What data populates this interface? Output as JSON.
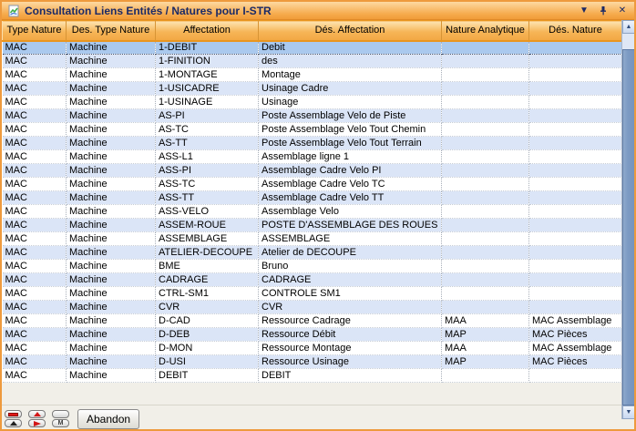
{
  "window": {
    "title": "Consultation Liens Entités / Natures pour I-STR",
    "titlebar_icons": [
      "document-chart-icon",
      "chevron-down-icon",
      "pin-icon",
      "close-icon"
    ]
  },
  "colors": {
    "titlebar_orange": "#f19c38",
    "header_orange": "#f2a743",
    "selected_row_blue": "#aac9ee",
    "alt_row_blue": "#dbe5f7",
    "scrollbar_thumb": "#7d9bc4",
    "title_text_navy": "#1b2a66"
  },
  "table": {
    "columns": [
      "Type Nature",
      "Des. Type Nature",
      "Affectation",
      "Dés. Affectation",
      "Nature Analytique",
      "Dés. Nature"
    ],
    "selected_row_index": 0,
    "rows": [
      [
        "MAC",
        "Machine",
        "1-DEBIT",
        "Debit",
        "",
        ""
      ],
      [
        "MAC",
        "Machine",
        "1-FINITION",
        "des",
        "",
        ""
      ],
      [
        "MAC",
        "Machine",
        "1-MONTAGE",
        "Montage",
        "",
        ""
      ],
      [
        "MAC",
        "Machine",
        "1-USICADRE",
        "Usinage Cadre",
        "",
        ""
      ],
      [
        "MAC",
        "Machine",
        "1-USINAGE",
        "Usinage",
        "",
        ""
      ],
      [
        "MAC",
        "Machine",
        "AS-PI",
        "Poste Assemblage Velo de Piste",
        "",
        ""
      ],
      [
        "MAC",
        "Machine",
        "AS-TC",
        "Poste Assemblage Velo Tout Chemin",
        "",
        ""
      ],
      [
        "MAC",
        "Machine",
        "AS-TT",
        "Poste Assemblage Velo Tout Terrain",
        "",
        ""
      ],
      [
        "MAC",
        "Machine",
        "ASS-L1",
        "Assemblage ligne 1",
        "",
        ""
      ],
      [
        "MAC",
        "Machine",
        "ASS-PI",
        "Assemblage Cadre Velo PI",
        "",
        ""
      ],
      [
        "MAC",
        "Machine",
        "ASS-TC",
        "Assemblage Cadre Velo TC",
        "",
        ""
      ],
      [
        "MAC",
        "Machine",
        "ASS-TT",
        "Assemblage Cadre Velo TT",
        "",
        ""
      ],
      [
        "MAC",
        "Machine",
        "ASS-VELO",
        "Assemblage Velo",
        "",
        ""
      ],
      [
        "MAC",
        "Machine",
        "ASSEM-ROUE",
        "POSTE D'ASSEMBLAGE DES ROUES",
        "",
        ""
      ],
      [
        "MAC",
        "Machine",
        "ASSEMBLAGE",
        "ASSEMBLAGE",
        "",
        ""
      ],
      [
        "MAC",
        "Machine",
        "ATELIER-DECOUPE",
        "Atelier de DECOUPE",
        "",
        ""
      ],
      [
        "MAC",
        "Machine",
        "BME",
        "Bruno",
        "",
        ""
      ],
      [
        "MAC",
        "Machine",
        "CADRAGE",
        "CADRAGE",
        "",
        ""
      ],
      [
        "MAC",
        "Machine",
        "CTRL-SM1",
        "CONTROLE SM1",
        "",
        ""
      ],
      [
        "MAC",
        "Machine",
        "CVR",
        "CVR",
        "",
        ""
      ],
      [
        "MAC",
        "Machine",
        "D-CAD",
        "Ressource Cadrage",
        "MAA",
        "MAC Assemblage"
      ],
      [
        "MAC",
        "Machine",
        "D-DEB",
        "Ressource Débit",
        "MAP",
        "MAC Pièces"
      ],
      [
        "MAC",
        "Machine",
        "D-MON",
        "Ressource Montage",
        "MAA",
        "MAC Assemblage"
      ],
      [
        "MAC",
        "Machine",
        "D-USI",
        "Ressource Usinage",
        "MAP",
        "MAC Pièces"
      ],
      [
        "MAC",
        "Machine",
        "DEBIT",
        "DEBIT",
        "",
        ""
      ]
    ]
  },
  "footer": {
    "abandon_label": "Abandon",
    "nav_icons": [
      "red-bar-icon",
      "red-triangle-up-icon",
      "blank-icon",
      "black-triangle-up-icon",
      "red-wedge-right-icon",
      "m-icon"
    ]
  }
}
